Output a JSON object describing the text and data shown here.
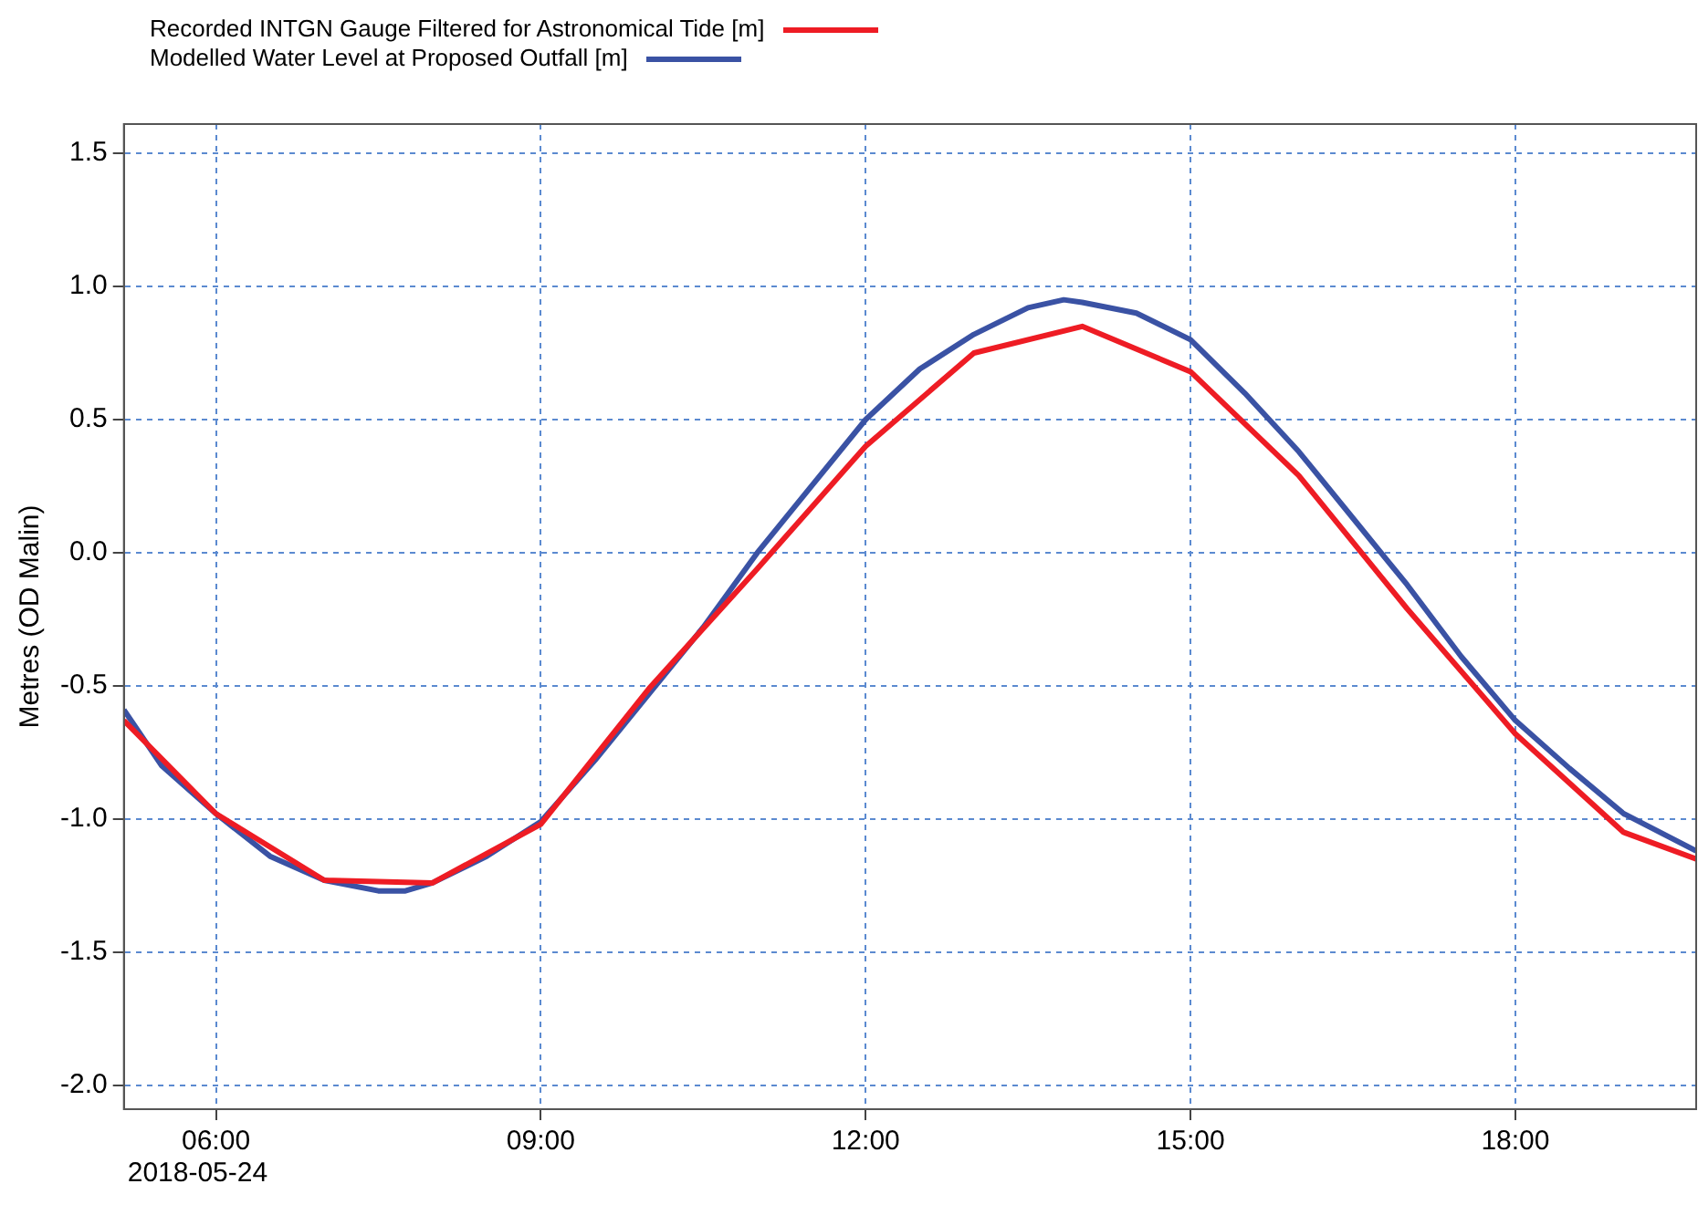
{
  "chart_data": {
    "type": "line",
    "ylabel": "Metres (OD Malin)",
    "xlim": [
      5.15,
      19.67
    ],
    "xticks": [
      {
        "value": 6,
        "label": "06:00"
      },
      {
        "value": 9,
        "label": "09:00"
      },
      {
        "value": 12,
        "label": "12:00"
      },
      {
        "value": 15,
        "label": "15:00"
      },
      {
        "value": 18,
        "label": "18:00"
      }
    ],
    "ylim": [
      -2.09,
      1.61
    ],
    "yticks": [
      {
        "value": -2,
        "label": "-2.0"
      },
      -1.5,
      {
        "value": -1,
        "label": "-1.0"
      },
      -0.5,
      {
        "value": 0,
        "label": "0.0"
      },
      0.5,
      {
        "value": 1,
        "label": "1.0"
      },
      1.5
    ],
    "grid": true,
    "legend": "top",
    "marker": "none",
    "line_style": "solid",
    "annotations": [
      "2018-05-24"
    ],
    "series": [
      {
        "name": "Recorded INTGN Gauge Filtered for Astronomical Tide [m]",
        "color": "#ee1c24",
        "x": [
          5.15,
          6,
          7,
          8,
          9,
          10,
          11,
          12,
          13,
          14,
          15,
          16,
          17,
          18,
          19,
          19.67
        ],
        "values": [
          -0.63,
          -0.98,
          -1.23,
          -1.24,
          -1.02,
          -0.51,
          -0.06,
          0.4,
          0.75,
          0.85,
          0.68,
          0.29,
          -0.21,
          -0.68,
          -1.05,
          -1.15
        ]
      },
      {
        "name": "Modelled Water Level at Proposed Outfall [m]",
        "color": "#3a52a4",
        "x": [
          5.15,
          5.5,
          6,
          6.5,
          7,
          7.5,
          7.75,
          8,
          8.5,
          9,
          9.5,
          10,
          10.5,
          11,
          11.5,
          12,
          12.5,
          13,
          13.5,
          13.83,
          14,
          14.5,
          15,
          15.5,
          16,
          16.5,
          17,
          17.5,
          18,
          18.5,
          19,
          19.67
        ],
        "values": [
          -0.59,
          -0.8,
          -0.98,
          -1.14,
          -1.23,
          -1.27,
          -1.27,
          -1.24,
          -1.14,
          -1.01,
          -0.78,
          -0.53,
          -0.28,
          0.0,
          0.25,
          0.5,
          0.69,
          0.82,
          0.92,
          0.95,
          0.94,
          0.9,
          0.8,
          0.6,
          0.38,
          0.13,
          -0.12,
          -0.39,
          -0.63,
          -0.81,
          -0.98,
          -1.12
        ]
      }
    ]
  }
}
